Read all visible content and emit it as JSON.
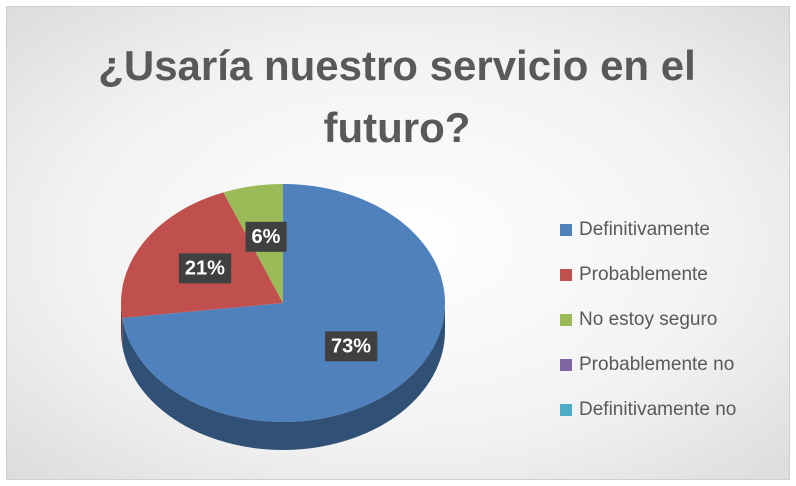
{
  "chart_data": {
    "type": "pie",
    "title": "¿Usaría nuestro servicio en el futuro?",
    "categories": [
      "Definitivamente",
      "Probablemente",
      "No estoy seguro",
      "Probablemente no",
      "Definitivamente no"
    ],
    "values": [
      73,
      21,
      6,
      0,
      0
    ],
    "value_labels": [
      "73%",
      "21%",
      "6%",
      null,
      null
    ],
    "colors": [
      "#4f81bd",
      "#c0504d",
      "#9bbb59",
      "#8064a2",
      "#4bacc6"
    ],
    "legend": "right"
  }
}
